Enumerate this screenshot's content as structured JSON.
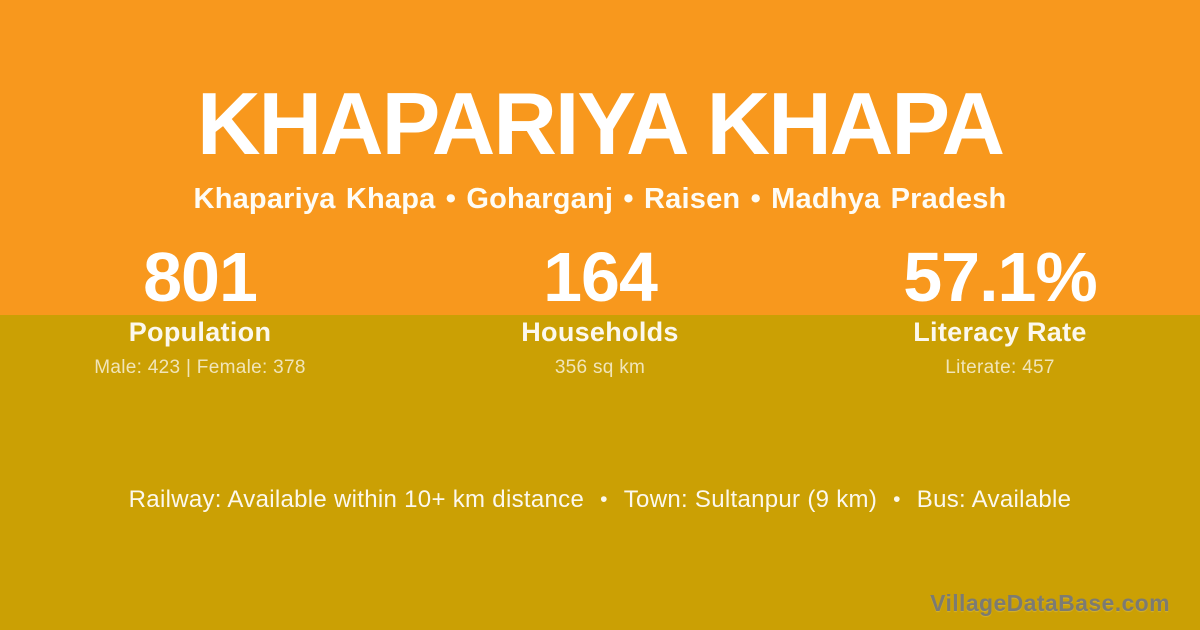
{
  "colors": {
    "top_background": "#F8981D",
    "bottom_background": "#CBA004",
    "heading_text": "#FFFFFF",
    "detail_text": "rgba(255,255,255,0.72)",
    "watermark_text": "#7C7B72"
  },
  "header": {
    "title": "KHAPARIYA KHAPA",
    "location": {
      "village": "Khapariya Khapa",
      "block": "Goharganj",
      "district": "Raisen",
      "state": "Madhya Pradesh",
      "display": "Khapariya Khapa • Goharganj • Raisen • Madhya Pradesh"
    }
  },
  "stats": [
    {
      "value": "801",
      "label": "Population",
      "detail": "Male: 423 | Female: 378"
    },
    {
      "value": "164",
      "label": "Households",
      "detail": "356 sq km"
    },
    {
      "value": "57.1%",
      "label": "Literacy Rate",
      "detail": "Literate: 457"
    }
  ],
  "footer": {
    "separator": "•",
    "segments": [
      "Railway: Available within 10+ km distance",
      "Town: Sultanpur (9 km)",
      "Bus: Available"
    ],
    "watermark": "VillageDataBase.com"
  }
}
